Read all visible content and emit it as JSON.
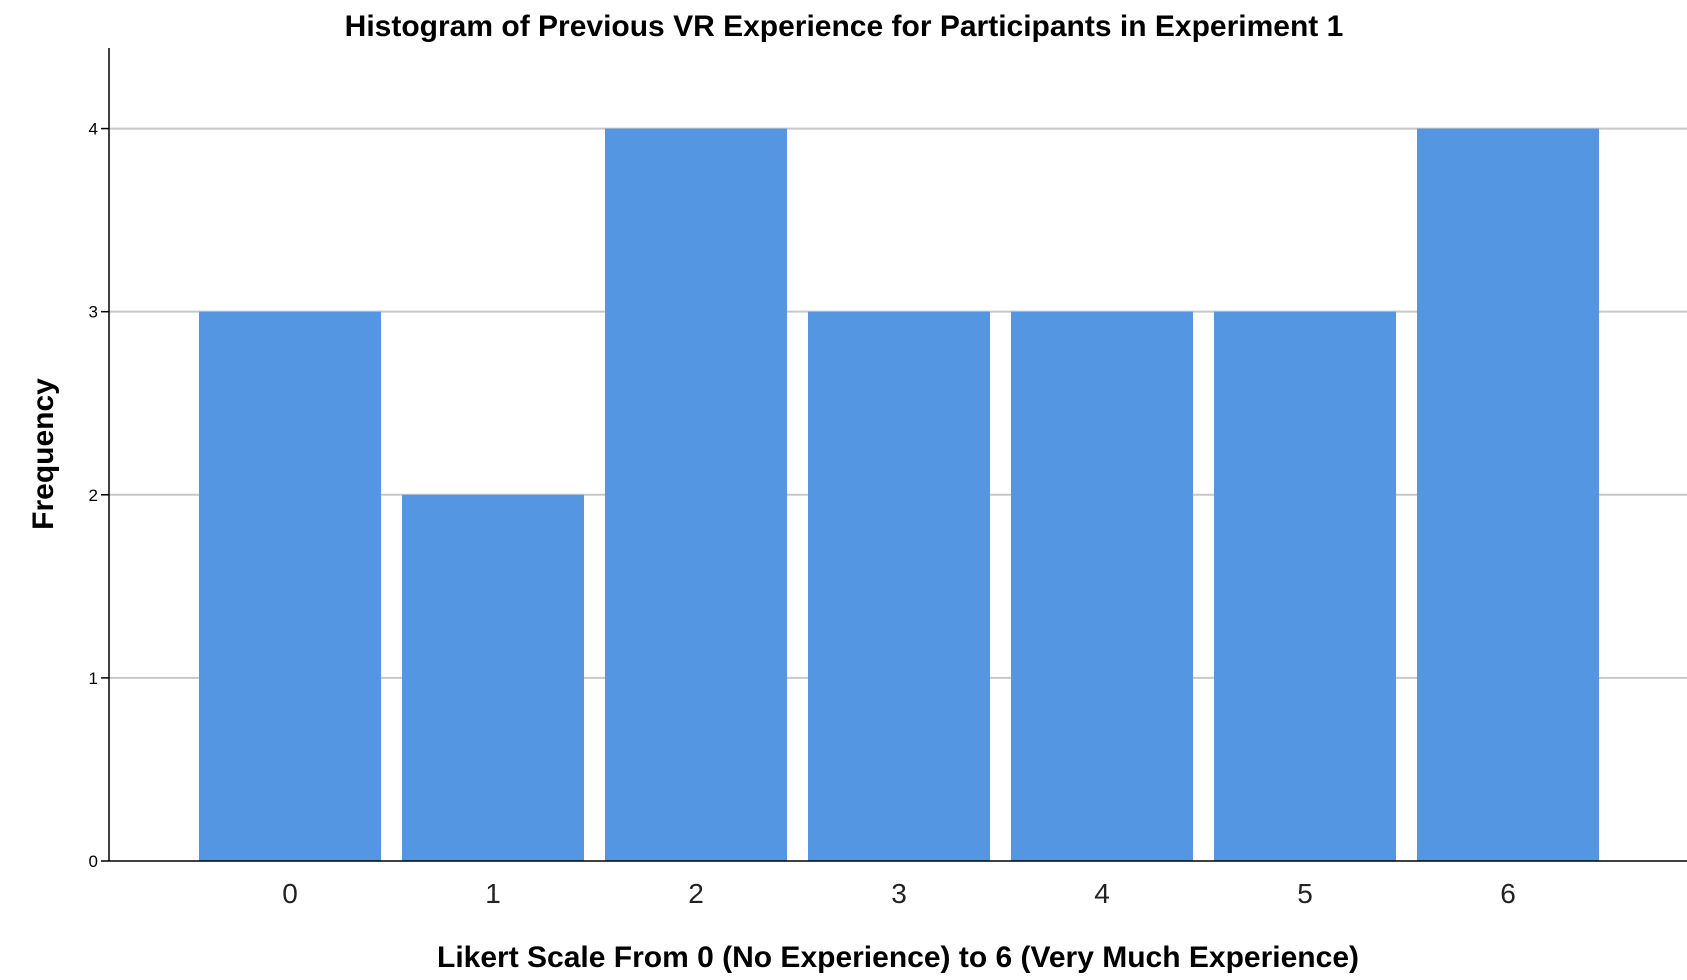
{
  "chart_data": {
    "type": "bar",
    "title": "Histogram of Previous VR Experience for Participants in Experiment 1",
    "xlabel": "Likert Scale From 0 (No Experience) to 6 (Very Much Experience)",
    "ylabel": "Frequency",
    "categories": [
      "0",
      "1",
      "2",
      "3",
      "4",
      "5",
      "6"
    ],
    "values": [
      3,
      2,
      4,
      3,
      3,
      3,
      4
    ],
    "yticks": [
      "0",
      "1",
      "2",
      "3",
      "4"
    ],
    "ylim": [
      0,
      4.44
    ],
    "grid": true,
    "legend": "none",
    "colors": {
      "bar": "#5596e3",
      "grid": "#c8c8c8",
      "axis": "#000000",
      "background": "#ffffff"
    }
  }
}
